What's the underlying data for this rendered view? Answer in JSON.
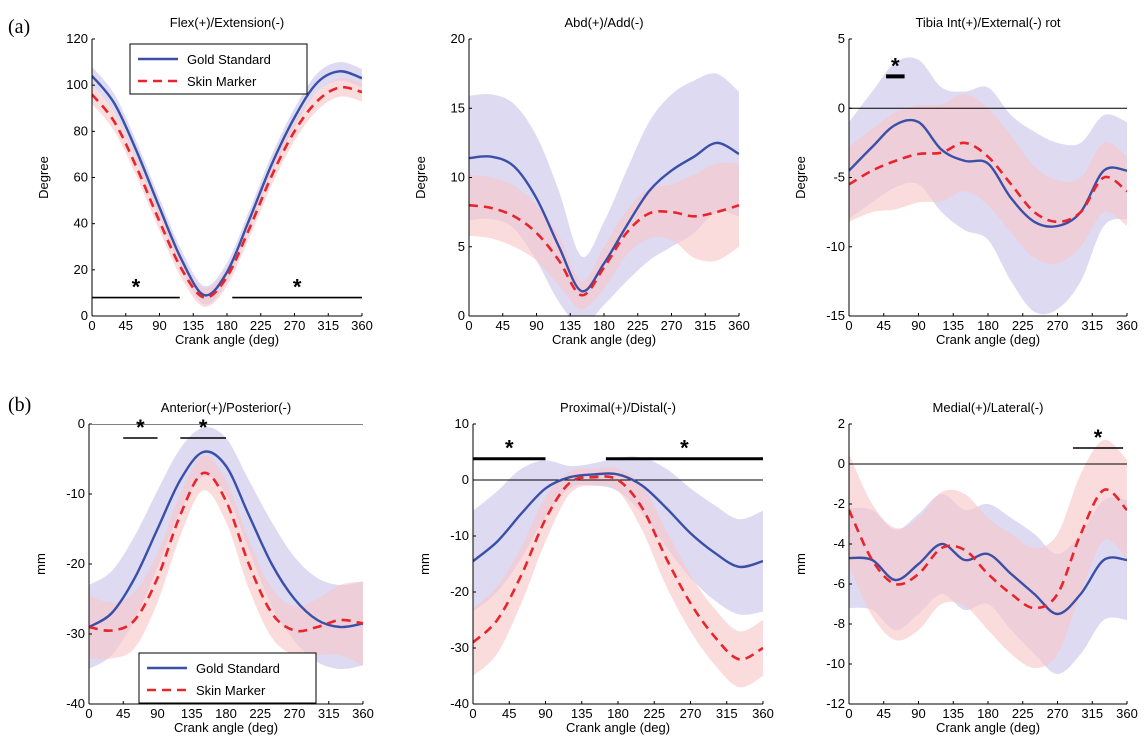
{
  "figure": {
    "panel_labels": [
      "(a)",
      "(b)"
    ],
    "colors": {
      "gold": "#3a4fa8",
      "gold_band": "#c8c4ea",
      "skin": "#e8242c",
      "skin_band": "#f8c6c8",
      "overlap": "#dcbcd8"
    }
  },
  "chart_data": [
    {
      "type": "line",
      "title": "Flex(+)/Extension(-)",
      "xlabel": "Crank angle (deg)",
      "ylabel": "Degree",
      "xlim": [
        0,
        360
      ],
      "ylim": [
        0,
        120
      ],
      "xticks": [
        0,
        45,
        90,
        135,
        180,
        225,
        270,
        315,
        360
      ],
      "yticks": [
        0,
        20,
        40,
        60,
        80,
        100,
        120
      ],
      "zero_line": false,
      "legend": {
        "placement": "top-left",
        "entries": [
          "Gold Standard",
          "Skin Marker"
        ]
      },
      "x": [
        0,
        30,
        60,
        90,
        120,
        150,
        180,
        210,
        240,
        270,
        300,
        330,
        360
      ],
      "series": [
        {
          "name": "Gold Standard",
          "values": [
            104,
            92,
            71,
            47,
            24,
            9,
            19,
            42,
            66,
            86,
            101,
            106,
            103
          ],
          "band": [
            4,
            4,
            4,
            4,
            4,
            4,
            4,
            4,
            4,
            4,
            4,
            4,
            4
          ]
        },
        {
          "name": "Skin Marker",
          "values": [
            96,
            84,
            64,
            41,
            20,
            8,
            17,
            38,
            61,
            80,
            93,
            99,
            97
          ],
          "band": [
            4,
            4,
            4,
            4,
            4,
            4,
            4,
            4,
            4,
            4,
            4,
            4,
            4
          ]
        }
      ],
      "significance": [
        {
          "x0": 0,
          "x1": 117,
          "y": 8,
          "label": "*"
        },
        {
          "x0": 187,
          "x1": 360,
          "y": 8,
          "label": "*"
        }
      ]
    },
    {
      "type": "line",
      "title": "Abd(+)/Add(-)",
      "xlabel": "Crank angle (deg)",
      "ylabel": "Degree",
      "xlim": [
        0,
        360
      ],
      "ylim": [
        0,
        20
      ],
      "xticks": [
        0,
        45,
        90,
        135,
        180,
        225,
        270,
        315,
        360
      ],
      "yticks": [
        0,
        5,
        10,
        15,
        20
      ],
      "zero_line": false,
      "x": [
        0,
        30,
        60,
        90,
        120,
        150,
        180,
        210,
        240,
        270,
        300,
        330,
        360
      ],
      "series": [
        {
          "name": "Gold Standard",
          "values": [
            11.4,
            11.5,
            10.8,
            8.5,
            5,
            1.8,
            3.8,
            6.5,
            9,
            10.5,
            11.5,
            12.5,
            11.7
          ],
          "band": [
            4.5,
            4.5,
            4.5,
            4.5,
            4,
            2.5,
            3,
            4,
            5,
            5.5,
            5.5,
            5,
            4.5
          ]
        },
        {
          "name": "Skin Marker",
          "values": [
            8,
            7.8,
            7.2,
            6,
            4,
            1.5,
            3.5,
            6,
            7.4,
            7.5,
            7.2,
            7.5,
            8
          ],
          "band": [
            2.2,
            2.2,
            2.2,
            2,
            1.8,
            1,
            1.5,
            1.6,
            1.8,
            2,
            3,
            3.5,
            3
          ]
        }
      ],
      "significance": []
    },
    {
      "type": "line",
      "title": "Tibia Int(+)/External(-) rot",
      "xlabel": "Crank angle (deg)",
      "ylabel": "Degree",
      "xlim": [
        0,
        360
      ],
      "ylim": [
        -15,
        5
      ],
      "xticks": [
        0,
        45,
        90,
        135,
        180,
        225,
        270,
        315,
        360
      ],
      "yticks": [
        -15,
        -10,
        -5,
        0,
        5
      ],
      "zero_line": true,
      "x": [
        0,
        30,
        60,
        90,
        120,
        150,
        180,
        210,
        240,
        270,
        300,
        330,
        360
      ],
      "series": [
        {
          "name": "Gold Standard",
          "values": [
            -4.5,
            -2.8,
            -1.2,
            -1,
            -3,
            -3.8,
            -4,
            -6.5,
            -8.2,
            -8.5,
            -7.5,
            -4.5,
            -4.5
          ],
          "band": [
            3.5,
            4,
            4.5,
            4.5,
            4.5,
            5,
            5.5,
            6,
            6.5,
            6,
            5,
            4,
            3.5
          ]
        },
        {
          "name": "Skin Marker",
          "values": [
            -5.5,
            -4.5,
            -3.8,
            -3.3,
            -3.2,
            -2.5,
            -3.5,
            -5.5,
            -7.5,
            -8.2,
            -7.5,
            -5,
            -6
          ],
          "band": [
            2.7,
            3,
            3.5,
            3.5,
            3.5,
            3.5,
            3.5,
            3.5,
            3.3,
            3,
            2.5,
            2.5,
            2.5
          ]
        }
      ],
      "significance": [
        {
          "x0": 48,
          "x1": 72,
          "y": 2.3,
          "label": "*"
        }
      ]
    },
    {
      "type": "line",
      "title": "Anterior(+)/Posterior(-)",
      "xlabel": "Crank angle (deg)",
      "ylabel": "mm",
      "xlim": [
        0,
        360
      ],
      "ylim": [
        -40,
        0
      ],
      "xticks": [
        0,
        45,
        90,
        135,
        180,
        225,
        270,
        315,
        360
      ],
      "yticks": [
        -40,
        -30,
        -20,
        -10,
        0
      ],
      "zero_line": true,
      "legend": {
        "placement": "bottom-left",
        "entries": [
          "Gold Standard",
          "Skin Marker"
        ]
      },
      "x": [
        0,
        30,
        60,
        90,
        120,
        150,
        180,
        210,
        240,
        270,
        300,
        330,
        360
      ],
      "series": [
        {
          "name": "Gold Standard",
          "values": [
            -29,
            -27,
            -22,
            -15,
            -8,
            -4,
            -6,
            -13,
            -20,
            -25,
            -28,
            -29,
            -28.5
          ],
          "band": [
            6,
            6,
            6,
            5.5,
            4.5,
            3.5,
            4,
            5,
            6,
            6,
            6,
            6,
            6
          ]
        },
        {
          "name": "Skin Marker",
          "values": [
            -29,
            -29.5,
            -28,
            -22,
            -13,
            -7,
            -11,
            -20,
            -27,
            -29.5,
            -29,
            -28,
            -28.5
          ],
          "band": [
            4.5,
            4,
            4,
            3.5,
            3,
            2.5,
            3,
            3.5,
            3.5,
            3.5,
            4,
            5,
            6
          ]
        }
      ],
      "significance": [
        {
          "x0": 45,
          "x1": 90,
          "y": -2,
          "label": "*"
        },
        {
          "x0": 120,
          "x1": 180,
          "y": -2,
          "label": "*"
        }
      ]
    },
    {
      "type": "line",
      "title": "Proximal(+)/Distal(-)",
      "xlabel": "Crank angle (deg)",
      "ylabel": "mm",
      "xlim": [
        0,
        360
      ],
      "ylim": [
        -40,
        10
      ],
      "xticks": [
        0,
        45,
        90,
        135,
        180,
        225,
        270,
        315,
        360
      ],
      "yticks": [
        -40,
        -30,
        -20,
        -10,
        0,
        10
      ],
      "zero_line": true,
      "x": [
        0,
        30,
        60,
        90,
        120,
        150,
        180,
        210,
        240,
        270,
        300,
        330,
        360
      ],
      "series": [
        {
          "name": "Gold Standard",
          "values": [
            -14.5,
            -11,
            -6,
            -1.5,
            0.5,
            1,
            1,
            -1,
            -5,
            -9.5,
            -13,
            -15.5,
            -14.5
          ],
          "band": [
            9,
            9,
            8,
            5,
            2,
            2,
            3,
            5,
            7,
            8,
            8.5,
            8.5,
            9
          ]
        },
        {
          "name": "Skin Marker",
          "values": [
            -29,
            -25,
            -17,
            -7,
            -0.5,
            0.5,
            0,
            -5,
            -14,
            -22,
            -28,
            -32,
            -30
          ],
          "band": [
            6,
            6,
            5,
            4,
            2,
            1.5,
            2,
            4,
            5,
            5,
            5,
            5,
            5
          ]
        }
      ],
      "significance": [
        {
          "x0": 0,
          "x1": 90,
          "y": 3.8,
          "label": "*"
        },
        {
          "x0": 165,
          "x1": 360,
          "y": 3.8,
          "label": "*"
        }
      ]
    },
    {
      "type": "line",
      "title": "Medial(+)/Lateral(-)",
      "xlabel": "Crank angle (deg)",
      "ylabel": "mm",
      "xlim": [
        0,
        360
      ],
      "ylim": [
        -12,
        2
      ],
      "xticks": [
        0,
        45,
        90,
        135,
        180,
        225,
        270,
        315,
        360
      ],
      "yticks": [
        -12,
        -10,
        -8,
        -6,
        -4,
        -2,
        0,
        2
      ],
      "zero_line": true,
      "x": [
        0,
        30,
        60,
        90,
        120,
        150,
        180,
        210,
        240,
        270,
        300,
        330,
        360
      ],
      "series": [
        {
          "name": "Gold Standard",
          "values": [
            -4.7,
            -4.8,
            -5.8,
            -5,
            -4,
            -4.8,
            -4.5,
            -5.5,
            -6.5,
            -7.5,
            -6.5,
            -4.8,
            -4.8
          ],
          "band": [
            2.5,
            2.5,
            2.5,
            2.5,
            2.5,
            2.5,
            2.5,
            2.8,
            3,
            3,
            3,
            3,
            3
          ]
        },
        {
          "name": "Skin Marker",
          "values": [
            -2.3,
            -4.8,
            -6,
            -5.5,
            -4.2,
            -4.3,
            -5.5,
            -6.5,
            -7.2,
            -6.5,
            -3.5,
            -1.3,
            -2.3
          ],
          "band": [
            2.8,
            2.8,
            2.8,
            2.8,
            2.8,
            2.8,
            2.8,
            3,
            3,
            3,
            3,
            2.5,
            2.5
          ]
        }
      ],
      "significance": [
        {
          "x0": 290,
          "x1": 355,
          "y": 0.8,
          "label": "*"
        }
      ]
    }
  ]
}
